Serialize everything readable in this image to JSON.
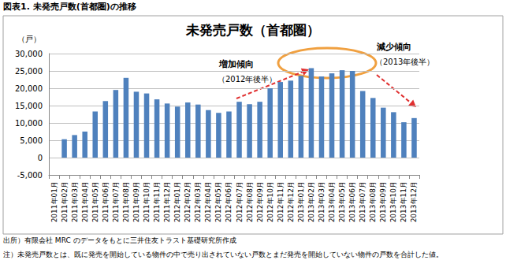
{
  "chart_data": {
    "type": "bar",
    "header": "図表1. 未発売戸数(首都圏)の推移",
    "title": "未発売戸数（首都圏）",
    "y_label": "（戸）",
    "annotations": [
      "増加傾向",
      "（2012年後半）",
      "減少傾向",
      "（2013年後半）"
    ],
    "source": "出所）有限会社 MRC のデータをもとに三井住友トラスト基礎研究所作成",
    "note": "注）未発売戸数とは、既に発売を開始している物件の中で売り出されていない戸数とまだ発売を開始していない物件の戸数を合計した値。",
    "categories": [
      "2011年01月",
      "2011年02月",
      "2011年03月",
      "2011年04月",
      "2011年05月",
      "2011年06月",
      "2011年07月",
      "2011年08月",
      "2011年09月",
      "2011年10月",
      "2011年11月",
      "2011年12月",
      "2012年01月",
      "2012年02月",
      "2012年03月",
      "2012年04月",
      "2012年05月",
      "2012年06月",
      "2012年07月",
      "2012年08月",
      "2012年09月",
      "2012年10月",
      "2012年11月",
      "2012年12月",
      "2013年01月",
      "2013年02月",
      "2013年03月",
      "2013年04月",
      "2013年05月",
      "2013年06月",
      "2013年07月",
      "2013年08月",
      "2013年09月",
      "2013年10月",
      "2013年11月",
      "2013年12月"
    ],
    "values": [
      null,
      5300,
      6500,
      7500,
      13300,
      16300,
      19500,
      23000,
      19000,
      18500,
      16800,
      15600,
      14700,
      15900,
      15300,
      13700,
      12900,
      13300,
      16100,
      15400,
      16100,
      20000,
      21800,
      22200,
      23600,
      25800,
      23400,
      24300,
      25200,
      25000,
      19200,
      17200,
      14400,
      13100,
      10200,
      11400
    ],
    "color": "#4f81bd",
    "ylim": [
      -5000,
      30000
    ],
    "yticks": [
      {
        "value": -5000,
        "label": "-5,000"
      },
      0,
      {
        "value": 5000,
        "label": "5,000"
      },
      {
        "value": 10000,
        "label": "10,000"
      },
      {
        "value": 15000,
        "label": "15,000"
      },
      {
        "value": 20000,
        "label": "20,000"
      },
      {
        "value": 25000,
        "label": "25,000"
      },
      {
        "value": 30000,
        "label": "30,000"
      }
    ],
    "grid": true
  }
}
